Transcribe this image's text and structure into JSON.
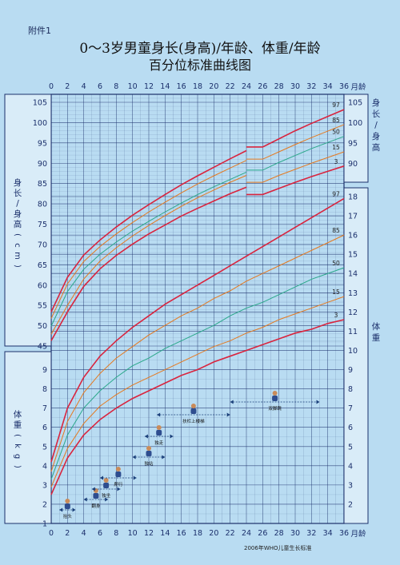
{
  "annex_label": "附件1",
  "title_line1": "0～3岁男童身长(身高)/年龄、体重/年龄",
  "title_line2": "百分位标准曲线图",
  "source_note": "2006年WHO儿童生长标准",
  "colors": {
    "background": "#b9dcf2",
    "grid": "#1b2f6b",
    "p3_p97": "#d9243e",
    "p15_p85": "#e5791f",
    "p50": "#2aa88a"
  },
  "chart_data": [
    {
      "type": "line",
      "subtitle": "身长/身高",
      "ylabel": "身长/身高(cm)",
      "xlabel": "月龄",
      "x_ticks": [
        0,
        2,
        4,
        6,
        8,
        10,
        12,
        14,
        16,
        18,
        20,
        22,
        24,
        26,
        28,
        30,
        32,
        34,
        36
      ],
      "ylim": [
        45,
        105
      ],
      "y_ticks_left": [
        45,
        50,
        55,
        60,
        65,
        70,
        75,
        80,
        85,
        90,
        95,
        100,
        105
      ],
      "y_ticks_right": [
        90,
        95,
        100,
        105
      ],
      "grid": true,
      "x": [
        0,
        2,
        4,
        6,
        8,
        10,
        12,
        14,
        16,
        18,
        20,
        22,
        24,
        26,
        28,
        30,
        32,
        34,
        36
      ],
      "series": [
        {
          "name": "3",
          "values": [
            46.3,
            53.4,
            59.7,
            64.0,
            67.3,
            70.1,
            72.6,
            74.8,
            77.0,
            78.9,
            80.7,
            82.5,
            84.1,
            82.3,
            83.8,
            85.3,
            86.7,
            88.0,
            89.3
          ]
        },
        {
          "name": "15",
          "values": [
            47.9,
            55.0,
            61.5,
            65.9,
            69.2,
            72.1,
            74.7,
            77.1,
            79.4,
            81.5,
            83.4,
            85.3,
            87.0,
            85.3,
            87.0,
            88.5,
            90.0,
            91.4,
            92.8
          ]
        },
        {
          "name": "50",
          "values": [
            49.9,
            58.4,
            63.9,
            67.6,
            70.6,
            73.3,
            75.7,
            78.0,
            80.2,
            82.3,
            84.2,
            86.0,
            87.8,
            88.3,
            90.2,
            91.9,
            93.6,
            95.1,
            96.6
          ]
        },
        {
          "name": "85",
          "values": [
            51.8,
            60.3,
            65.8,
            69.5,
            72.6,
            75.4,
            78.0,
            80.4,
            82.7,
            84.9,
            86.9,
            88.8,
            90.7,
            91.0,
            92.8,
            94.6,
            96.3,
            97.9,
            99.5
          ]
        },
        {
          "name": "97",
          "values": [
            53.4,
            61.9,
            67.4,
            71.1,
            74.3,
            77.2,
            79.8,
            82.3,
            84.7,
            86.9,
            89.0,
            91.1,
            93.1,
            94.0,
            96.0,
            98.0,
            99.8,
            101.5,
            103.2
          ]
        }
      ]
    },
    {
      "type": "line",
      "subtitle": "体重",
      "ylabel": "体重(kg)",
      "xlabel": "月龄",
      "x_ticks": [
        0,
        2,
        4,
        6,
        8,
        10,
        12,
        14,
        16,
        18,
        20,
        22,
        24,
        26,
        28,
        30,
        32,
        34,
        36
      ],
      "ylim": [
        1,
        18
      ],
      "y_ticks_left": [
        1,
        2,
        3,
        4,
        5,
        6,
        7,
        8,
        9
      ],
      "y_ticks_right": [
        2,
        3,
        4,
        5,
        6,
        7,
        8,
        9,
        10,
        11,
        12,
        13,
        14,
        15,
        16,
        17,
        18
      ],
      "grid": true,
      "x": [
        0,
        2,
        4,
        6,
        8,
        10,
        12,
        14,
        16,
        18,
        20,
        22,
        24,
        26,
        28,
        30,
        32,
        34,
        36
      ],
      "series": [
        {
          "name": "3",
          "values": [
            2.5,
            4.4,
            5.6,
            6.4,
            7.0,
            7.5,
            7.9,
            8.3,
            8.7,
            9.0,
            9.4,
            9.7,
            10.0,
            10.3,
            10.6,
            10.9,
            11.1,
            11.4,
            11.6
          ]
        },
        {
          "name": "15",
          "values": [
            2.9,
            4.9,
            6.2,
            7.1,
            7.7,
            8.2,
            8.6,
            9.0,
            9.4,
            9.8,
            10.2,
            10.5,
            10.9,
            11.2,
            11.6,
            11.9,
            12.2,
            12.5,
            12.8
          ]
        },
        {
          "name": "50",
          "values": [
            3.3,
            5.6,
            7.0,
            7.9,
            8.6,
            9.2,
            9.6,
            10.1,
            10.5,
            10.9,
            11.3,
            11.8,
            12.2,
            12.5,
            12.9,
            13.3,
            13.7,
            14.0,
            14.3
          ]
        },
        {
          "name": "85",
          "values": [
            3.7,
            6.3,
            7.8,
            8.8,
            9.6,
            10.2,
            10.8,
            11.3,
            11.8,
            12.2,
            12.7,
            13.1,
            13.6,
            14.0,
            14.4,
            14.8,
            15.2,
            15.6,
            16.0
          ]
        },
        {
          "name": "97",
          "values": [
            4.2,
            7.0,
            8.6,
            9.7,
            10.5,
            11.2,
            11.8,
            12.4,
            12.9,
            13.4,
            13.9,
            14.4,
            14.9,
            15.4,
            15.9,
            16.4,
            16.9,
            17.4,
            17.9
          ]
        }
      ]
    }
  ],
  "milestones": [
    {
      "label": "抬头",
      "range": [
        1,
        3
      ]
    },
    {
      "label": "翻身",
      "range": [
        4,
        7
      ]
    },
    {
      "label": "独坐",
      "range": [
        5,
        8.5
      ]
    },
    {
      "label": "爬行",
      "range": [
        6,
        10.5
      ]
    },
    {
      "label": "独站",
      "range": [
        10,
        14
      ]
    },
    {
      "label": "独走",
      "range": [
        11.5,
        15
      ]
    },
    {
      "label": "扶栏上楼梯",
      "range": [
        13,
        22
      ]
    },
    {
      "label": "双脚跳",
      "range": [
        22,
        33
      ]
    }
  ]
}
